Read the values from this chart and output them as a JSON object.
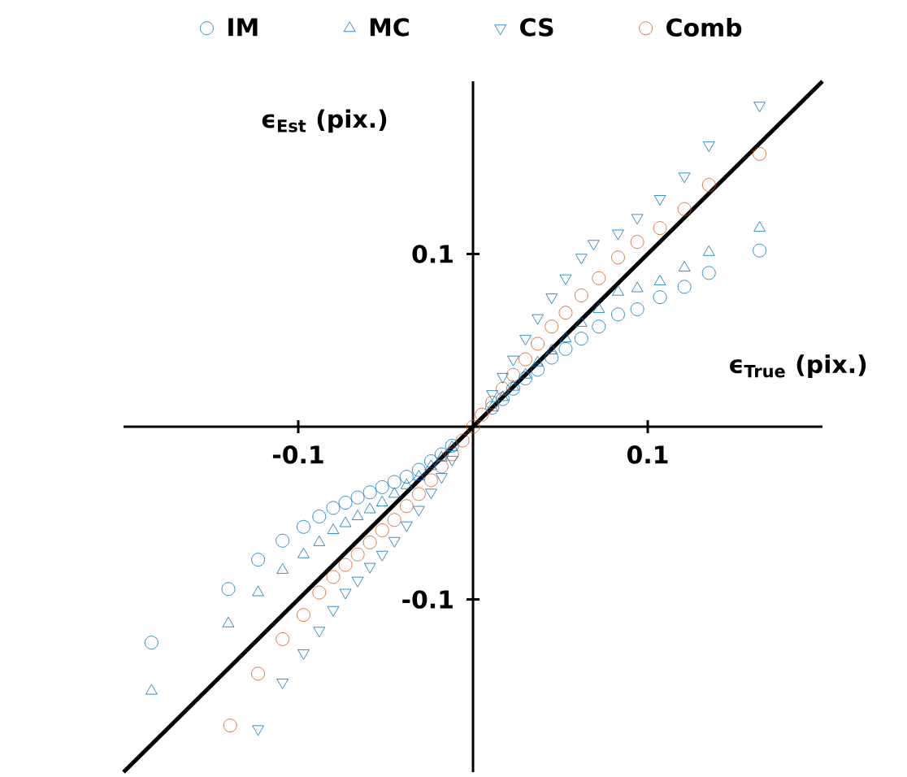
{
  "chart_data": {
    "type": "scatter",
    "xlabel": "ϵ$_{True}$ (pix.)",
    "ylabel": "ϵ$_{Est}$ (pix.)",
    "xlim": [
      -0.2,
      0.2
    ],
    "ylim": [
      -0.2,
      0.2
    ],
    "xticks": [
      -0.1,
      0.1
    ],
    "yticks": [
      -0.1,
      0.1
    ],
    "legend": "top",
    "series": [
      {
        "name": "IM",
        "color": "#0072bd",
        "marker": "circle",
        "x": [
          -0.184,
          -0.14,
          -0.123,
          -0.109,
          -0.097,
          -0.088,
          -0.08,
          -0.073,
          -0.066,
          -0.059,
          -0.052,
          -0.045,
          -0.038,
          -0.031,
          -0.024,
          -0.018,
          -0.012,
          0.011,
          0.017,
          0.023,
          0.03,
          0.037,
          0.045,
          0.053,
          0.062,
          0.072,
          0.083,
          0.094,
          0.107,
          0.121,
          0.135,
          0.164
        ],
        "values": [
          -0.125,
          -0.094,
          -0.077,
          -0.066,
          -0.058,
          -0.052,
          -0.047,
          -0.044,
          -0.041,
          -0.038,
          -0.035,
          -0.032,
          -0.029,
          -0.025,
          -0.02,
          -0.016,
          -0.011,
          0.011,
          0.016,
          0.022,
          0.028,
          0.033,
          0.04,
          0.045,
          0.051,
          0.058,
          0.065,
          0.068,
          0.075,
          0.081,
          0.089,
          0.102
        ]
      },
      {
        "name": "MC",
        "color": "#0072bd",
        "marker": "triangle",
        "x": [
          -0.184,
          -0.14,
          -0.123,
          -0.109,
          -0.097,
          -0.088,
          -0.08,
          -0.073,
          -0.066,
          -0.059,
          -0.052,
          -0.045,
          -0.038,
          -0.031,
          -0.024,
          -0.018,
          -0.012,
          0.011,
          0.017,
          0.023,
          0.03,
          0.037,
          0.045,
          0.053,
          0.062,
          0.072,
          0.083,
          0.094,
          0.107,
          0.121,
          0.135,
          0.164
        ],
        "values": [
          -0.153,
          -0.114,
          -0.096,
          -0.083,
          -0.074,
          -0.067,
          -0.06,
          -0.056,
          -0.052,
          -0.048,
          -0.044,
          -0.039,
          -0.034,
          -0.029,
          -0.023,
          -0.018,
          -0.012,
          0.011,
          0.017,
          0.023,
          0.03,
          0.037,
          0.044,
          0.051,
          0.06,
          0.068,
          0.078,
          0.08,
          0.084,
          0.092,
          0.101,
          0.115
        ]
      },
      {
        "name": "CS",
        "color": "#0072bd",
        "marker": "triangle down",
        "x": [
          -0.123,
          -0.109,
          -0.097,
          -0.088,
          -0.08,
          -0.073,
          -0.066,
          -0.059,
          -0.052,
          -0.045,
          -0.038,
          -0.031,
          -0.024,
          -0.018,
          -0.012,
          0.011,
          0.017,
          0.023,
          0.03,
          0.037,
          0.045,
          0.053,
          0.062,
          0.069,
          0.083,
          0.094,
          0.107,
          0.121,
          0.135,
          0.164
        ],
        "values": [
          -0.175,
          -0.148,
          -0.131,
          -0.118,
          -0.106,
          -0.096,
          -0.089,
          -0.081,
          -0.074,
          -0.066,
          -0.057,
          -0.048,
          -0.038,
          -0.029,
          -0.019,
          0.019,
          0.029,
          0.039,
          0.051,
          0.063,
          0.075,
          0.086,
          0.098,
          0.106,
          0.112,
          0.121,
          0.132,
          0.145,
          0.163,
          0.186
        ]
      },
      {
        "name": "Comb",
        "color": "#d95319",
        "marker": "circle",
        "x": [
          -0.139,
          -0.123,
          -0.109,
          -0.097,
          -0.088,
          -0.08,
          -0.073,
          -0.066,
          -0.059,
          -0.052,
          -0.045,
          -0.038,
          -0.031,
          -0.024,
          -0.018,
          -0.012,
          -0.006,
          0,
          0.005,
          0.011,
          0.017,
          0.023,
          0.03,
          0.037,
          0.045,
          0.053,
          0.062,
          0.072,
          0.083,
          0.094,
          0.107,
          0.121,
          0.135,
          0.164
        ],
        "values": [
          -0.173,
          -0.143,
          -0.123,
          -0.109,
          -0.096,
          -0.087,
          -0.08,
          -0.074,
          -0.067,
          -0.06,
          -0.054,
          -0.046,
          -0.039,
          -0.031,
          -0.023,
          -0.016,
          -0.008,
          0,
          0.007,
          0.014,
          0.022,
          0.03,
          0.039,
          0.048,
          0.058,
          0.066,
          0.076,
          0.086,
          0.098,
          0.107,
          0.115,
          0.126,
          0.14,
          0.158
        ]
      },
      {
        "type": "line",
        "color": "#000000",
        "marker": "none",
        "x": [
          -0.2,
          0.2
        ],
        "values": [
          -0.2,
          0.2
        ]
      }
    ]
  }
}
